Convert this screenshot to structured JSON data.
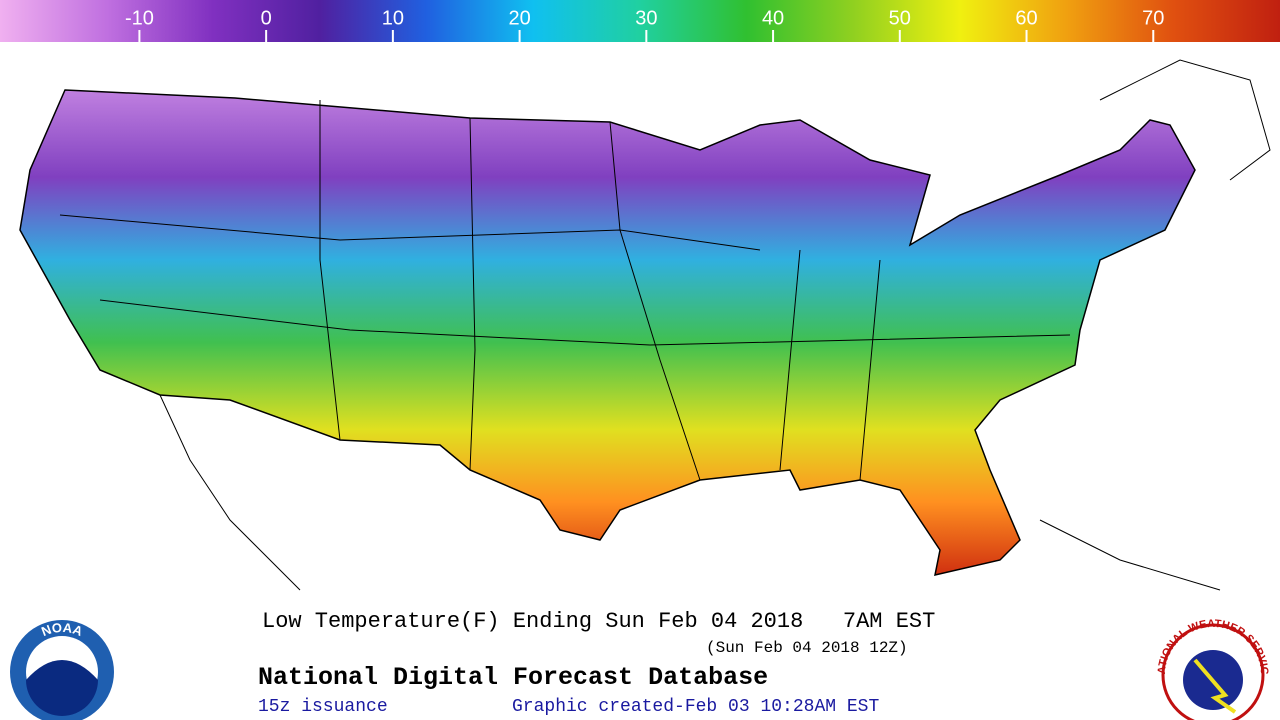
{
  "colorbar": {
    "range": [
      -21,
      80
    ],
    "ticks": [
      -10,
      0,
      10,
      20,
      30,
      40,
      50,
      60,
      70
    ],
    "colors": [
      "#f0b0f0",
      "#c070e0",
      "#8030c0",
      "#5020a0",
      "#2060e0",
      "#10c0f0",
      "#20d0a0",
      "#30c030",
      "#90d020",
      "#f0f010",
      "#f0a010",
      "#e05010",
      "#c02010"
    ]
  },
  "title": "Low Temperature(F) Ending Sun Feb 04 2018   7AM EST",
  "subtitle": "(Sun Feb 04 2018 12Z)",
  "database": "National Digital Forecast Database",
  "issuance": "15z issuance",
  "created": "Graphic created-Feb 03 10:28AM EST",
  "logos": {
    "noaa": "NOAA",
    "nws": "NATIONAL WEATHER SERVICE"
  }
}
